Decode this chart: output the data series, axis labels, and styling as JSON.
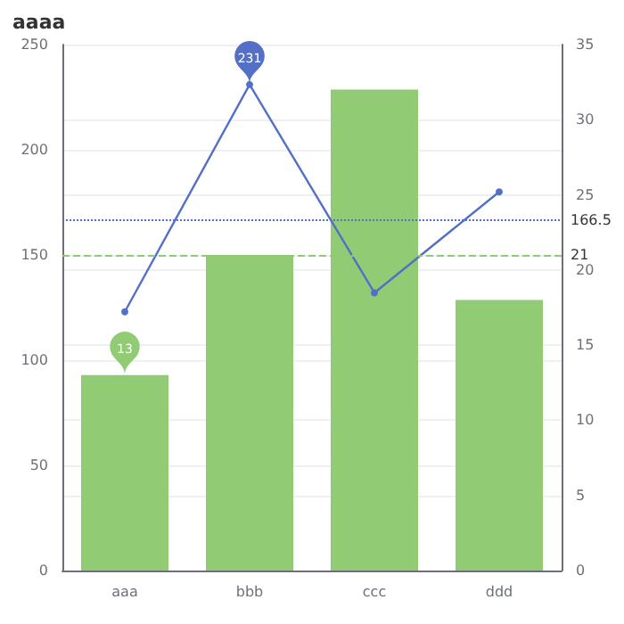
{
  "chart_data": {
    "type": "bar",
    "title": "aaaa",
    "categories": [
      "aaa",
      "bbb",
      "ccc",
      "ddd"
    ],
    "series": [
      {
        "axis": "y2",
        "color": "#91cc75",
        "values": [
          13,
          21,
          32,
          18
        ],
        "value_labels": [
          "13",
          null,
          null,
          null
        ]
      },
      {
        "type": "line",
        "axis": "y",
        "color": "#5470c6",
        "values": [
          123,
          231,
          132,
          180
        ],
        "value_labels": [
          null,
          "231",
          null,
          null
        ],
        "marker": "circle"
      }
    ],
    "ylim": [
      0,
      250
    ],
    "yticks": [
      0,
      50,
      100,
      150,
      200,
      250
    ],
    "y2lim": [
      0,
      35
    ],
    "y2ticks": [
      0,
      5,
      10,
      15,
      20,
      25,
      30,
      35
    ],
    "ref_lines": [
      {
        "axis": "y",
        "value": 166.5,
        "label": "166.5",
        "color": "#5470c6",
        "line_style": "dotted"
      },
      {
        "axis": "y2",
        "value": 21,
        "label": "21",
        "color": "#91cc75",
        "line_style": "dashed"
      }
    ],
    "grid": "y"
  }
}
